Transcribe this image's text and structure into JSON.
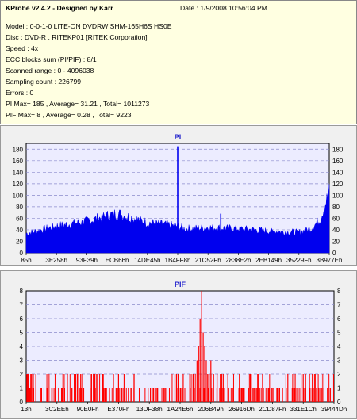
{
  "info": {
    "title": "KProbe v2.4.2 - Designed by Karr",
    "date": "Date : 1/9/2008 10:56:04 PM",
    "lines": [
      "Model : 0-0-1-0 LITE-ON DVDRW SHM-165H6S HS0E",
      "Disc : DVD-R , RITEKP01 [RITEK Corporation]",
      "Speed : 4x",
      "ECC blocks sum (PI/PIF) : 8/1",
      "Scanned range : 0 - 4096038",
      "Sampling count : 226799",
      "Errors : 0",
      "PI Max= 185 , Average= 31.21 , Total= 1011273",
      "PIF Max= 8 , Average= 0.28 , Total= 9223"
    ]
  },
  "colors": {
    "panel": "#f0f0f0",
    "plot": "#ececff",
    "pi": "#0000ee",
    "pif": "#ff0000",
    "title": "#2222cc",
    "grid": "#8a8acc"
  },
  "chart_data": [
    {
      "type": "area",
      "title": "PI",
      "ylim": [
        0,
        190
      ],
      "yticks": [
        0,
        20,
        40,
        60,
        80,
        100,
        120,
        140,
        160,
        180
      ],
      "xtick_labels": [
        "85h",
        "3E258h",
        "93F39h",
        "ECB66h",
        "14DE45h",
        "1B4FF8h",
        "21C52Fh",
        "2838E2h",
        "2EB149h",
        "35229Fh",
        "3B977Eh"
      ],
      "x_position": [
        0,
        0.1,
        0.2,
        0.3,
        0.4,
        0.5,
        0.52,
        0.55,
        0.6,
        0.7,
        0.8,
        0.9,
        0.94,
        0.97,
        1.0
      ],
      "y": [
        32,
        44,
        52,
        65,
        50,
        44,
        40,
        40,
        42,
        40,
        36,
        34,
        40,
        55,
        100
      ],
      "spikes": [
        {
          "x_position": 0.5,
          "y": 185
        },
        {
          "x_position": 0.642,
          "y": 68
        }
      ]
    },
    {
      "type": "bar",
      "title": "PIF",
      "ylim": [
        0,
        8
      ],
      "yticks": [
        0,
        1,
        2,
        3,
        4,
        5,
        6,
        7,
        8
      ],
      "xtick_labels": [
        "13h",
        "3C2EEh",
        "90E0Fh",
        "E370Fh",
        "13DF38h",
        "1A24E6h",
        "206B49h",
        "26916Dh",
        "2CD87Fh",
        "331E1Ch",
        "39444Dh"
      ],
      "x_position": [
        0.555,
        0.56,
        0.565,
        0.57,
        0.575,
        0.58,
        0.585,
        0.59,
        0.6,
        0.62,
        0.64,
        0.7,
        0.3,
        0.12,
        0.05,
        0.85,
        0.9,
        0.95
      ],
      "y": [
        3,
        4,
        6,
        8,
        5,
        4,
        3,
        2,
        3,
        2,
        2,
        1,
        2,
        2,
        1,
        2,
        2,
        1
      ]
    }
  ]
}
